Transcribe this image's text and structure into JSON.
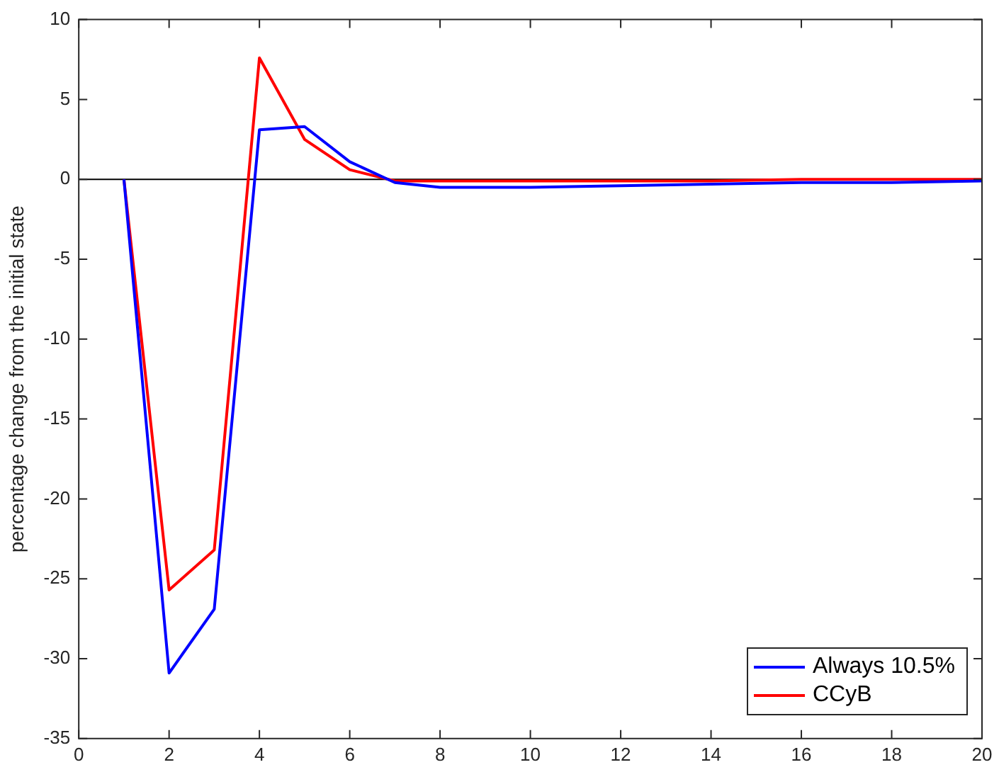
{
  "chart_data": {
    "type": "line",
    "ylabel": "percentage change from the initial state",
    "x": [
      1,
      2,
      3,
      4,
      5,
      6,
      7,
      8,
      9,
      10,
      12,
      14,
      16,
      18,
      20
    ],
    "series": [
      {
        "name": "Always 10.5%",
        "color": "#0000ff",
        "values": [
          0,
          -30.9,
          -26.9,
          3.1,
          3.3,
          1.1,
          -0.2,
          -0.5,
          -0.5,
          -0.5,
          -0.4,
          -0.3,
          -0.2,
          -0.2,
          -0.1
        ]
      },
      {
        "name": "CCyB",
        "color": "#ff0000",
        "values": [
          0,
          -25.7,
          -23.2,
          7.6,
          2.5,
          0.6,
          -0.1,
          -0.1,
          -0.1,
          -0.1,
          -0.1,
          -0.1,
          0,
          0,
          0
        ]
      }
    ],
    "xlim": [
      0,
      20
    ],
    "xticks": [
      0,
      2,
      4,
      6,
      8,
      10,
      12,
      14,
      16,
      18,
      20
    ],
    "ylim": [
      -35,
      10
    ],
    "yticks": [
      -35,
      -30,
      -25,
      -20,
      -15,
      -10,
      -5,
      0,
      5,
      10
    ],
    "ref_lines": [
      {
        "axis": "y",
        "value": 0,
        "color": "#000000"
      }
    ],
    "grid": false,
    "legend": "bottom right",
    "marker": "none",
    "line_style": "solid"
  }
}
